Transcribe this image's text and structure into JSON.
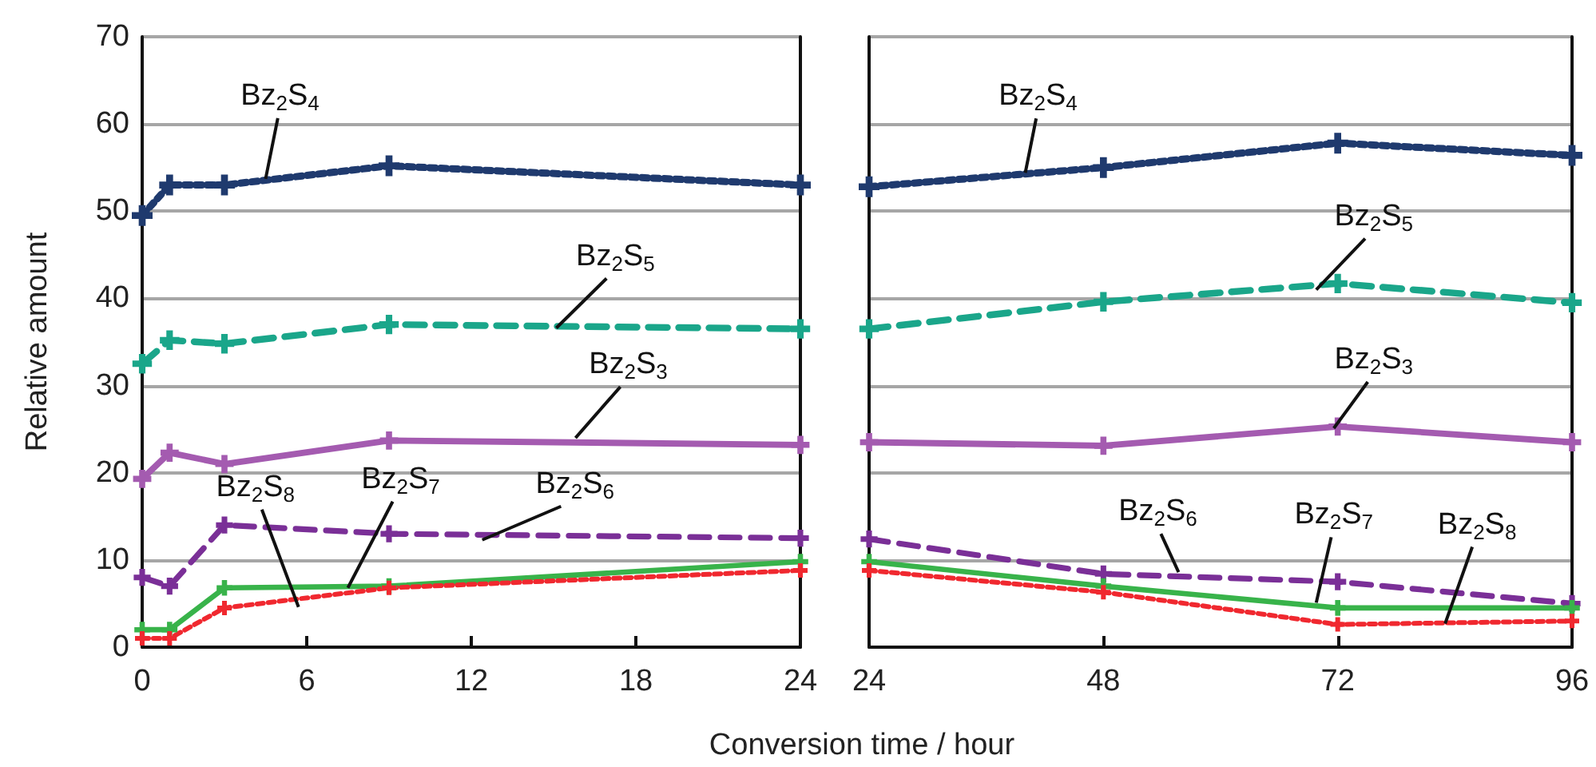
{
  "chart_data": [
    {
      "type": "line",
      "xlabel": "Conversion time / hour",
      "ylabel": "Relative amount",
      "x": [
        0,
        1,
        3,
        9,
        24
      ],
      "xlim": [
        0,
        24
      ],
      "xticks": [
        0,
        6,
        12,
        18,
        24
      ],
      "ylim": [
        0,
        70
      ],
      "yticks": [
        0,
        10,
        20,
        30,
        40,
        50,
        60,
        70
      ],
      "grid": "y",
      "marker": "cross",
      "series": [
        {
          "color": "#1f3a6e",
          "line_style": "dotted",
          "values": [
            49.5,
            53,
            53,
            55.2,
            53
          ]
        },
        {
          "color": "#1aa68a",
          "line_style": "dashed",
          "values": [
            32.5,
            35.2,
            34.8,
            37,
            36.5
          ]
        },
        {
          "color": "#a45bb0",
          "line_style": "solid",
          "values": [
            19.3,
            22.3,
            21,
            23.7,
            23.2
          ]
        },
        {
          "color": "#7a2f97",
          "line_style": "dashed",
          "values": [
            8,
            7,
            14,
            13,
            12.5
          ]
        },
        {
          "color": "#38b34a",
          "line_style": "solid",
          "values": [
            2,
            2,
            6.8,
            7,
            9.8
          ]
        },
        {
          "color": "#f0282f",
          "line_style": "dotted",
          "values": [
            1,
            1,
            4.5,
            6.8,
            8.8
          ]
        }
      ],
      "annotations": [
        {
          "text": "Bz$_{2}$S$_{4}$",
          "x": 4.5,
          "y": 53.7
        },
        {
          "text": "Bz$_{2}$S$_{5}$",
          "x": 15.1,
          "y": 36.6
        },
        {
          "text": "Bz$_{2}$S$_{3}$",
          "x": 15.8,
          "y": 24
        },
        {
          "text": "Bz$_{2}$S$_{8}$",
          "x": 5.7,
          "y": 4.6
        },
        {
          "text": "Bz$_{2}$S$_{7}$",
          "x": 7.5,
          "y": 6.8
        },
        {
          "text": "Bz$_{2}$S$_{6}$",
          "x": 12.4,
          "y": 12.3
        }
      ]
    },
    {
      "type": "line",
      "x": [
        24,
        48,
        72,
        96
      ],
      "xlim": [
        24,
        96
      ],
      "xticks": [
        24,
        48,
        72,
        96
      ],
      "ylim": [
        0,
        70
      ],
      "yticks": [
        0,
        10,
        20,
        30,
        40,
        50,
        60,
        70
      ],
      "grid": "y",
      "marker": "cross",
      "tick_labels": "x",
      "series": [
        {
          "color": "#1f3a6e",
          "line_style": "dotted",
          "values": [
            52.8,
            55,
            57.8,
            56.4
          ]
        },
        {
          "color": "#1aa68a",
          "line_style": "dashed",
          "values": [
            36.5,
            39.6,
            41.7,
            39.5
          ]
        },
        {
          "color": "#a45bb0",
          "line_style": "solid",
          "values": [
            23.5,
            23.1,
            25.3,
            23.5
          ]
        },
        {
          "color": "#7a2f97",
          "line_style": "dashed",
          "values": [
            12.4,
            8.4,
            7.5,
            5
          ]
        },
        {
          "color": "#38b34a",
          "line_style": "solid",
          "values": [
            9.8,
            7,
            4.5,
            4.5
          ]
        },
        {
          "color": "#f0282f",
          "line_style": "dotted",
          "values": [
            8.8,
            6.3,
            2.6,
            3
          ]
        }
      ],
      "annotations": [
        {
          "text": "Bz$_{2}$S$_{4}$",
          "x": 40,
          "y": 54.4
        },
        {
          "text": "Bz$_{2}$S$_{5}$",
          "x": 69.8,
          "y": 41
        },
        {
          "text": "Bz$_{2}$S$_{3}$",
          "x": 71.6,
          "y": 25.1
        },
        {
          "text": "Bz$_{2}$S$_{6}$",
          "x": 55.7,
          "y": 8.6
        },
        {
          "text": "Bz$_{2}$S$_{7}$",
          "x": 69.8,
          "y": 5.1
        },
        {
          "text": "Bz$_{2}$S$_{8}$",
          "x": 83,
          "y": 2.7
        }
      ]
    }
  ]
}
